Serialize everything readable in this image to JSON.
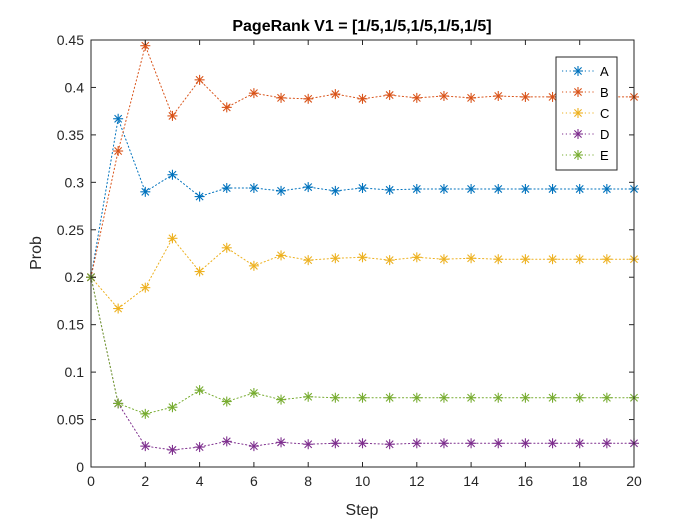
{
  "chart_data": {
    "type": "line",
    "title": "PageRank V1 = [1/5,1/5,1/5,1/5,1/5]",
    "xlabel": "Step",
    "ylabel": "Prob",
    "xlim": [
      0,
      20
    ],
    "ylim": [
      0,
      0.45
    ],
    "xticks": [
      0,
      2,
      4,
      6,
      8,
      10,
      12,
      14,
      16,
      18,
      20
    ],
    "xtick_labels": [
      "0",
      "2",
      "4",
      "6",
      "8",
      "10",
      "12",
      "14",
      "16",
      "18",
      "20"
    ],
    "yticks": [
      0,
      0.05,
      0.1,
      0.15,
      0.2,
      0.25,
      0.3,
      0.35,
      0.4,
      0.45
    ],
    "ytick_labels": [
      "0",
      "0.05",
      "0.1",
      "0.15",
      "0.2",
      "0.25",
      "0.3",
      "0.35",
      "0.4",
      "0.45"
    ],
    "grid": false,
    "legend_position": "top-right",
    "line_style": "dotted",
    "marker": "asterisk",
    "x": [
      0,
      1,
      2,
      3,
      4,
      5,
      6,
      7,
      8,
      9,
      10,
      11,
      12,
      13,
      14,
      15,
      16,
      17,
      18,
      19,
      20
    ],
    "series": [
      {
        "name": "A",
        "color": "#0072BD",
        "values": [
          0.2,
          0.367,
          0.29,
          0.308,
          0.285,
          0.294,
          0.294,
          0.291,
          0.295,
          0.291,
          0.294,
          0.292,
          0.293,
          0.293,
          0.293,
          0.293,
          0.293,
          0.293,
          0.293,
          0.293,
          0.293
        ]
      },
      {
        "name": "B",
        "color": "#D95319",
        "values": [
          0.2,
          0.333,
          0.444,
          0.37,
          0.408,
          0.379,
          0.394,
          0.389,
          0.388,
          0.393,
          0.388,
          0.392,
          0.389,
          0.391,
          0.389,
          0.391,
          0.39,
          0.39,
          0.39,
          0.39,
          0.39
        ]
      },
      {
        "name": "C",
        "color": "#EDB120",
        "values": [
          0.2,
          0.167,
          0.189,
          0.241,
          0.206,
          0.231,
          0.212,
          0.223,
          0.218,
          0.22,
          0.221,
          0.218,
          0.221,
          0.219,
          0.22,
          0.219,
          0.219,
          0.219,
          0.219,
          0.219,
          0.219
        ]
      },
      {
        "name": "D",
        "color": "#7E2F8E",
        "values": [
          0.2,
          0.067,
          0.022,
          0.018,
          0.021,
          0.027,
          0.022,
          0.026,
          0.024,
          0.025,
          0.025,
          0.024,
          0.025,
          0.025,
          0.025,
          0.025,
          0.025,
          0.025,
          0.025,
          0.025,
          0.025
        ]
      },
      {
        "name": "E",
        "color": "#77AC30",
        "values": [
          0.2,
          0.067,
          0.056,
          0.063,
          0.081,
          0.069,
          0.078,
          0.071,
          0.074,
          0.073,
          0.073,
          0.073,
          0.073,
          0.073,
          0.073,
          0.073,
          0.073,
          0.073,
          0.073,
          0.073,
          0.073
        ]
      }
    ]
  }
}
